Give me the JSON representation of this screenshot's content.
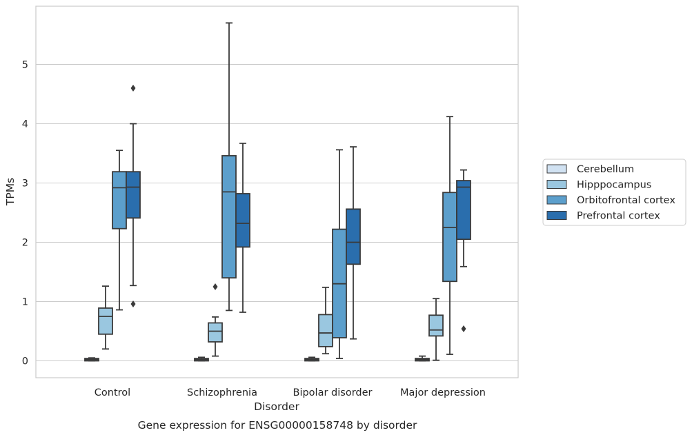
{
  "chart_data": {
    "type": "box",
    "caption": "Gene expression for ENSG00000158748 by disorder",
    "xlabel": "Disorder",
    "ylabel": "TPMs",
    "ylim": [
      -0.28,
      6.05
    ],
    "yticks": [
      0,
      1,
      2,
      3,
      4,
      5
    ],
    "grid": "horizontal",
    "legend_position": "right",
    "categories": [
      "Control",
      "Schizophrenia",
      "Bipolar disorder",
      "Major depression"
    ],
    "series": [
      {
        "name": "Cerebellum",
        "color": "#d1e2f2",
        "boxes": [
          {
            "lw": 0.0,
            "q1": 0.0,
            "med": 0.02,
            "q3": 0.04,
            "uw": 0.05,
            "outliers": []
          },
          {
            "lw": 0.0,
            "q1": 0.0,
            "med": 0.02,
            "q3": 0.04,
            "uw": 0.06,
            "outliers": []
          },
          {
            "lw": 0.0,
            "q1": 0.0,
            "med": 0.02,
            "q3": 0.04,
            "uw": 0.06,
            "outliers": []
          },
          {
            "lw": 0.0,
            "q1": 0.0,
            "med": 0.02,
            "q3": 0.04,
            "uw": 0.08,
            "outliers": []
          }
        ]
      },
      {
        "name": "Hipppocampus",
        "color": "#9ac7e0",
        "boxes": [
          {
            "lw": 0.2,
            "q1": 0.45,
            "med": 0.75,
            "q3": 0.89,
            "uw": 1.26,
            "outliers": []
          },
          {
            "lw": 0.08,
            "q1": 0.32,
            "med": 0.5,
            "q3": 0.64,
            "uw": 0.74,
            "outliers": [
              1.25
            ]
          },
          {
            "lw": 0.12,
            "q1": 0.24,
            "med": 0.47,
            "q3": 0.78,
            "uw": 1.24,
            "outliers": []
          },
          {
            "lw": 0.01,
            "q1": 0.42,
            "med": 0.52,
            "q3": 0.77,
            "uw": 1.05,
            "outliers": []
          }
        ]
      },
      {
        "name": "Orbitofrontal cortex",
        "color": "#5c9fcc",
        "boxes": [
          {
            "lw": 0.86,
            "q1": 2.23,
            "med": 2.92,
            "q3": 3.19,
            "uw": 3.55,
            "outliers": []
          },
          {
            "lw": 0.85,
            "q1": 1.4,
            "med": 2.85,
            "q3": 3.46,
            "uw": 5.7,
            "outliers": []
          },
          {
            "lw": 0.04,
            "q1": 0.39,
            "med": 1.3,
            "q3": 2.22,
            "uw": 3.56,
            "outliers": []
          },
          {
            "lw": 0.11,
            "q1": 1.34,
            "med": 2.25,
            "q3": 2.84,
            "uw": 4.12,
            "outliers": []
          }
        ]
      },
      {
        "name": "Prefrontal cortex",
        "color": "#2a6ead",
        "boxes": [
          {
            "lw": 1.27,
            "q1": 2.41,
            "med": 2.93,
            "q3": 3.19,
            "uw": 4.0,
            "outliers": [
              4.6,
              0.96
            ]
          },
          {
            "lw": 0.82,
            "q1": 1.92,
            "med": 2.32,
            "q3": 2.82,
            "uw": 3.67,
            "outliers": []
          },
          {
            "lw": 0.37,
            "q1": 1.63,
            "med": 2.0,
            "q3": 2.56,
            "uw": 3.61,
            "outliers": []
          },
          {
            "lw": 1.59,
            "q1": 2.05,
            "med": 2.93,
            "q3": 3.04,
            "uw": 3.22,
            "outliers": [
              0.54
            ]
          }
        ]
      }
    ]
  }
}
